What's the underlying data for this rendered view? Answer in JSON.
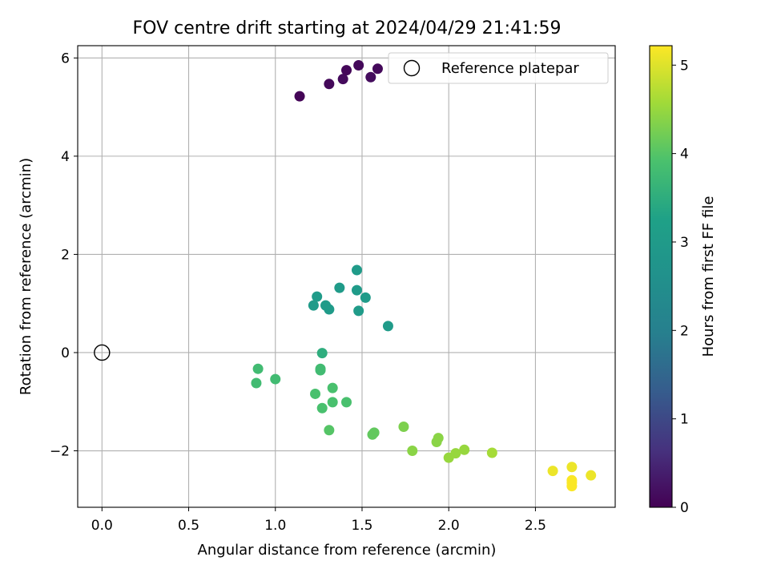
{
  "chart_data": {
    "type": "scatter",
    "title": "FOV centre drift starting at 2024/04/29 21:41:59",
    "xlabel": "Angular distance from reference (arcmin)",
    "ylabel": "Rotation from reference (arcmin)",
    "xlim": [
      -0.14,
      2.96
    ],
    "ylim": [
      -3.15,
      6.25
    ],
    "xticks": [
      0.0,
      0.5,
      1.0,
      1.5,
      2.0,
      2.5
    ],
    "xtick_labels": [
      "0.0",
      "0.5",
      "1.0",
      "1.5",
      "2.0",
      "2.5"
    ],
    "yticks": [
      -2,
      0,
      2,
      4,
      6
    ],
    "ytick_labels": [
      "−2",
      "0",
      "2",
      "4",
      "6"
    ],
    "grid": true,
    "legend": {
      "position": "top-right",
      "entries": [
        "Reference platepar"
      ]
    },
    "reference_point": {
      "x": 0.0,
      "y": 0.0,
      "label": "Reference platepar"
    },
    "colorbar": {
      "label": "Hours from first FF file",
      "colormap": "viridis",
      "range": [
        0,
        5.22
      ],
      "ticks": [
        0,
        1,
        2,
        3,
        4,
        5
      ],
      "tick_labels": [
        "0",
        "1",
        "2",
        "3",
        "4",
        "5"
      ]
    },
    "points": [
      {
        "x": 1.14,
        "y": 5.22,
        "c": 0.05
      },
      {
        "x": 1.31,
        "y": 5.47,
        "c": 0.1
      },
      {
        "x": 1.39,
        "y": 5.57,
        "c": 0.12
      },
      {
        "x": 1.41,
        "y": 5.75,
        "c": 0.08
      },
      {
        "x": 1.48,
        "y": 5.85,
        "c": 0.1
      },
      {
        "x": 1.55,
        "y": 5.61,
        "c": 0.14
      },
      {
        "x": 1.59,
        "y": 5.78,
        "c": 0.1
      },
      {
        "x": 1.47,
        "y": 1.68,
        "c": 3.0
      },
      {
        "x": 1.37,
        "y": 1.32,
        "c": 3.0
      },
      {
        "x": 1.47,
        "y": 1.27,
        "c": 3.0
      },
      {
        "x": 1.24,
        "y": 1.14,
        "c": 3.0
      },
      {
        "x": 1.52,
        "y": 1.12,
        "c": 3.0
      },
      {
        "x": 1.22,
        "y": 0.96,
        "c": 3.0
      },
      {
        "x": 1.29,
        "y": 0.96,
        "c": 3.0
      },
      {
        "x": 1.31,
        "y": 0.88,
        "c": 3.0
      },
      {
        "x": 1.48,
        "y": 0.85,
        "c": 3.0
      },
      {
        "x": 1.65,
        "y": 0.54,
        "c": 3.0
      },
      {
        "x": 1.27,
        "y": -0.01,
        "c": 3.5
      },
      {
        "x": 0.9,
        "y": -0.33,
        "c": 3.8
      },
      {
        "x": 1.26,
        "y": -0.33,
        "c": 3.8
      },
      {
        "x": 1.26,
        "y": -0.36,
        "c": 3.8
      },
      {
        "x": 1.0,
        "y": -0.54,
        "c": 3.8
      },
      {
        "x": 0.89,
        "y": -0.62,
        "c": 3.8
      },
      {
        "x": 1.33,
        "y": -0.72,
        "c": 3.9
      },
      {
        "x": 1.23,
        "y": -0.84,
        "c": 3.9
      },
      {
        "x": 1.33,
        "y": -1.01,
        "c": 3.9
      },
      {
        "x": 1.41,
        "y": -1.01,
        "c": 3.9
      },
      {
        "x": 1.27,
        "y": -1.13,
        "c": 3.9
      },
      {
        "x": 1.31,
        "y": -1.58,
        "c": 4.0
      },
      {
        "x": 1.57,
        "y": -1.63,
        "c": 4.1
      },
      {
        "x": 1.56,
        "y": -1.67,
        "c": 4.1
      },
      {
        "x": 1.74,
        "y": -1.51,
        "c": 4.3
      },
      {
        "x": 1.94,
        "y": -1.74,
        "c": 4.4
      },
      {
        "x": 1.93,
        "y": -1.82,
        "c": 4.4
      },
      {
        "x": 1.79,
        "y": -2.0,
        "c": 4.4
      },
      {
        "x": 2.09,
        "y": -1.98,
        "c": 4.5
      },
      {
        "x": 2.04,
        "y": -2.05,
        "c": 4.5
      },
      {
        "x": 2.0,
        "y": -2.14,
        "c": 4.5
      },
      {
        "x": 2.25,
        "y": -2.04,
        "c": 4.6
      },
      {
        "x": 2.6,
        "y": -2.41,
        "c": 5.1
      },
      {
        "x": 2.71,
        "y": -2.33,
        "c": 5.1
      },
      {
        "x": 2.82,
        "y": -2.5,
        "c": 5.1
      },
      {
        "x": 2.71,
        "y": -2.6,
        "c": 5.2
      },
      {
        "x": 2.71,
        "y": -2.65,
        "c": 5.2
      },
      {
        "x": 2.71,
        "y": -2.72,
        "c": 5.2
      }
    ]
  }
}
